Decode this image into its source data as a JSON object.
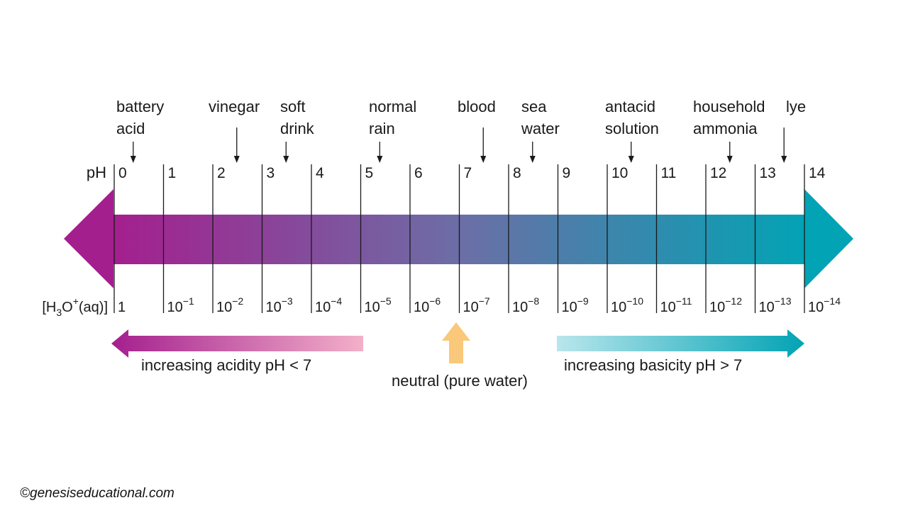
{
  "ph_label": "pH",
  "conc_label": {
    "pre": "[H",
    "sub": "3",
    "mid": "O",
    "sup": "+",
    "post": "(aq)]"
  },
  "ph_values": [
    "0",
    "1",
    "2",
    "3",
    "4",
    "5",
    "6",
    "7",
    "8",
    "9",
    "10",
    "11",
    "12",
    "13",
    "14"
  ],
  "concentrations": [
    {
      "base": "1",
      "exp": ""
    },
    {
      "base": "10",
      "exp": "−1"
    },
    {
      "base": "10",
      "exp": "−2"
    },
    {
      "base": "10",
      "exp": "−3"
    },
    {
      "base": "10",
      "exp": "−4"
    },
    {
      "base": "10",
      "exp": "−5"
    },
    {
      "base": "10",
      "exp": "−6"
    },
    {
      "base": "10",
      "exp": "−7"
    },
    {
      "base": "10",
      "exp": "−8"
    },
    {
      "base": "10",
      "exp": "−9"
    },
    {
      "base": "10",
      "exp": "−10"
    },
    {
      "base": "10",
      "exp": "−11"
    },
    {
      "base": "10",
      "exp": "−12"
    },
    {
      "base": "10",
      "exp": "−13"
    },
    {
      "base": "10",
      "exp": "−14"
    }
  ],
  "substances": [
    {
      "lines": [
        "battery",
        "acid"
      ],
      "ph": 0.4
    },
    {
      "lines": [
        "vinegar"
      ],
      "ph": 2.5
    },
    {
      "lines": [
        "soft",
        "drink"
      ],
      "ph": 3.5
    },
    {
      "lines": [
        "normal",
        "rain"
      ],
      "ph": 5.4
    },
    {
      "lines": [
        "blood"
      ],
      "ph": 7.5
    },
    {
      "lines": [
        "sea",
        "water"
      ],
      "ph": 8.5
    },
    {
      "lines": [
        "antacid",
        "solution"
      ],
      "ph": 10.5
    },
    {
      "lines": [
        "household",
        "ammonia"
      ],
      "ph": 12.5
    },
    {
      "lines": [
        "lye"
      ],
      "ph": 13.6
    }
  ],
  "acidity_label": "increasing acidity pH < 7",
  "neutral_label": "neutral (pure water)",
  "basicity_label": "increasing basicity pH > 7",
  "credit": "©genesiseducational.com",
  "colors": {
    "acid": "#a41f8e",
    "base": "#02a3b4",
    "neutral": "#fac87a",
    "acid_light": "#f3b0c9",
    "base_light": "#b9e6ec"
  }
}
